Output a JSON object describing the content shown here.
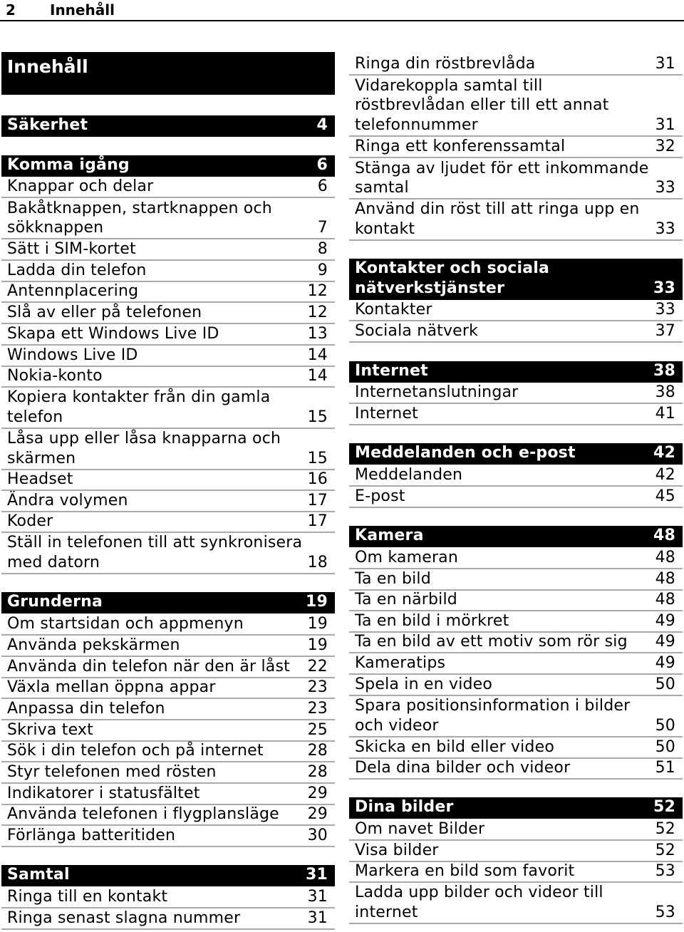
{
  "header": {
    "page_number": "2",
    "title": "Innehåll"
  },
  "main_title": "Innehåll",
  "toc": [
    {
      "text": "Säkerhet",
      "page": "4",
      "section": true
    },
    {
      "text": "Komma igång",
      "page": "6",
      "section": true
    },
    {
      "text": "Knappar och delar",
      "page": "6"
    },
    {
      "text": "Bakåtknappen, startknappen och",
      "page": ""
    },
    {
      "text": "sökknappen",
      "page": "7"
    },
    {
      "text": "Sätt i SIM-kortet",
      "page": "8"
    },
    {
      "text": "Ladda din telefon",
      "page": "9"
    },
    {
      "text": "Antennplacering",
      "page": "12"
    },
    {
      "text": "Slå av eller på telefonen",
      "page": "12"
    },
    {
      "text": "Skapa ett Windows Live ID",
      "page": "13"
    },
    {
      "text": "Windows Live ID",
      "page": "14"
    },
    {
      "text": "Nokia-konto",
      "page": "14"
    },
    {
      "text": "Kopiera kontakter från din gamla",
      "page": ""
    },
    {
      "text": "telefon",
      "page": "15"
    },
    {
      "text": "Låsa upp eller låsa knapparna och",
      "page": ""
    },
    {
      "text": "skärmen",
      "page": "15"
    },
    {
      "text": "Headset",
      "page": "16"
    },
    {
      "text": "Ändra volymen",
      "page": "17"
    },
    {
      "text": "Koder",
      "page": "17"
    },
    {
      "text": "Ställ in telefonen till att synkronisera",
      "page": ""
    },
    {
      "text": "med datorn",
      "page": "18"
    },
    {
      "text": "Grunderna",
      "page": "19",
      "section": true
    },
    {
      "text": "Om startsidan och appmenyn",
      "page": "19"
    },
    {
      "text": "Använda pekskärmen",
      "page": "19"
    },
    {
      "text": "Använda din telefon när den är låst",
      "page": "22"
    },
    {
      "text": "Växla mellan öppna appar",
      "page": "23"
    },
    {
      "text": "Anpassa din telefon",
      "page": "23"
    },
    {
      "text": "Skriva text",
      "page": "25"
    },
    {
      "text": "Sök i din telefon och på internet",
      "page": "28"
    },
    {
      "text": "Styr telefonen med rösten",
      "page": "28"
    },
    {
      "text": "Indikatorer i statusfältet",
      "page": "29"
    },
    {
      "text": "Använda telefonen i flygplansläge",
      "page": "29"
    },
    {
      "text": "Förlänga batteritiden",
      "page": "30"
    },
    {
      "text": "Samtal",
      "page": "31",
      "section": true
    },
    {
      "text": "Ringa till en kontakt",
      "page": "31"
    },
    {
      "text": "Ringa senast slagna nummer",
      "page": "31"
    },
    {
      "text": "Ringa din röstbrevlåda",
      "page": "31"
    },
    {
      "text": "Vidarekoppla samtal till",
      "page": ""
    },
    {
      "text": "röstbrevlådan eller till ett annat",
      "page": ""
    },
    {
      "text": "telefonnummer",
      "page": "31"
    },
    {
      "text": "Ringa ett konferenssamtal",
      "page": "32"
    },
    {
      "text": "Stänga av ljudet för ett inkommande",
      "page": ""
    },
    {
      "text": "samtal",
      "page": "33"
    },
    {
      "text": "Använd din röst till att ringa upp en",
      "page": ""
    },
    {
      "text": "kontakt",
      "page": "33"
    },
    {
      "text": "Kontakter och sociala",
      "page": "",
      "section": true
    },
    {
      "text": "nätverkstjänster",
      "page": "33",
      "section": true
    },
    {
      "text": "Kontakter",
      "page": "33"
    },
    {
      "text": "Sociala nätverk",
      "page": "37"
    },
    {
      "text": "Internet",
      "page": "38",
      "section": true
    },
    {
      "text": "Internetanslutningar",
      "page": "38"
    },
    {
      "text": "Internet",
      "page": "41"
    },
    {
      "text": "Meddelanden och e-post",
      "page": "42",
      "section": true
    },
    {
      "text": "Meddelanden",
      "page": "42"
    },
    {
      "text": "E-post",
      "page": "45"
    },
    {
      "text": "Kamera",
      "page": "48",
      "section": true
    },
    {
      "text": "Om kameran",
      "page": "48"
    },
    {
      "text": "Ta en bild",
      "page": "48"
    },
    {
      "text": "Ta en närbild",
      "page": "48"
    },
    {
      "text": "Ta en bild i mörkret",
      "page": "49"
    },
    {
      "text": "Ta en bild av ett motiv som rör sig",
      "page": "49"
    },
    {
      "text": "Kameratips",
      "page": "49"
    },
    {
      "text": "Spela in en video",
      "page": "50"
    },
    {
      "text": "Spara positionsinformation i bilder",
      "page": ""
    },
    {
      "text": "och videor",
      "page": "50"
    },
    {
      "text": "Skicka en bild eller video",
      "page": "50"
    },
    {
      "text": "Dela dina bilder och videor",
      "page": "51"
    },
    {
      "text": "Dina bilder",
      "page": "52",
      "section": true
    },
    {
      "text": "Om navet Bilder",
      "page": "52"
    },
    {
      "text": "Visa bilder",
      "page": "52"
    },
    {
      "text": "Markera en bild som favorit",
      "page": "53"
    },
    {
      "text": "Ladda upp bilder och videor till",
      "page": ""
    },
    {
      "text": "internet",
      "page": "53"
    }
  ]
}
